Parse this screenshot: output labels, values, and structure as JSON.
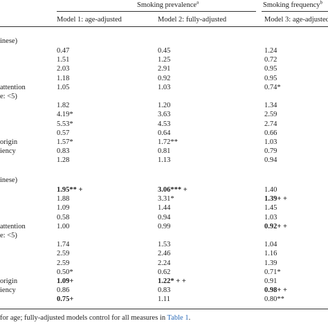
{
  "header": {
    "group_a": "Smoking prevalence",
    "group_a_note": "a",
    "group_b": "Smoking frequency",
    "group_b_note": "b",
    "model1": "Model 1: age-adjusted",
    "model2": "Model 2: fully-adjusted",
    "model3": "Model 3: age-adjusted"
  },
  "section1_label": "inese)",
  "section2_label": "inese)",
  "rows1": [
    {
      "label": "",
      "m1": "0.47",
      "m2": "0.45",
      "m3": "1.24"
    },
    {
      "label": "",
      "m1": "1.51",
      "m2": "1.25",
      "m3": "0.72"
    },
    {
      "label": "",
      "m1": "2.03",
      "m2": "2.91",
      "m3": "0.95"
    },
    {
      "label": "",
      "m1": "1.18",
      "m2": "0.92",
      "m3": "0.95"
    },
    {
      "label": "attention",
      "m1": "1.05",
      "m2": "1.03",
      "m3": "0.74*"
    },
    {
      "label": "e: <5)",
      "m1": "",
      "m2": "",
      "m3": ""
    },
    {
      "label": "",
      "m1": "1.82",
      "m2": "1.20",
      "m3": "1.34"
    },
    {
      "label": "",
      "m1": "4.19*",
      "m2": "3.63",
      "m3": "2.59"
    },
    {
      "label": "",
      "m1": "5.53*",
      "m2": "4.53",
      "m3": "2.74"
    },
    {
      "label": "",
      "m1": "0.57",
      "m2": "0.64",
      "m3": "0.66"
    },
    {
      "label": "origin",
      "m1": "1.57*",
      "m2": "1.72**",
      "m3": "1.03"
    },
    {
      "label": "iency",
      "m1": "0.83",
      "m2": "0.81",
      "m3": "0.79"
    },
    {
      "label": "",
      "m1": "1.28",
      "m2": "1.13",
      "m3": "0.94"
    }
  ],
  "rows2": [
    {
      "label": "",
      "m1": "1.95** +",
      "m1_bold": true,
      "m2": "3.06*** +",
      "m2_bold": true,
      "m3": "1.40",
      "m3_bold": false
    },
    {
      "label": "",
      "m1": "1.88",
      "m1_bold": false,
      "m2": "3.31*",
      "m2_bold": false,
      "m3": "1.39+ +",
      "m3_bold": true
    },
    {
      "label": "",
      "m1": "1.09",
      "m1_bold": false,
      "m2": "1.44",
      "m2_bold": false,
      "m3": "1.45",
      "m3_bold": false
    },
    {
      "label": "",
      "m1": "0.58",
      "m1_bold": false,
      "m2": "0.94",
      "m2_bold": false,
      "m3": "1.03",
      "m3_bold": false
    },
    {
      "label": "attention",
      "m1": "1.00",
      "m1_bold": false,
      "m2": "0.99",
      "m2_bold": false,
      "m3": "0.92+ +",
      "m3_bold": true
    },
    {
      "label": "e: <5)",
      "m1": "",
      "m1_bold": false,
      "m2": "",
      "m2_bold": false,
      "m3": "",
      "m3_bold": false
    },
    {
      "label": "",
      "m1": "1.74",
      "m1_bold": false,
      "m2": "1.53",
      "m2_bold": false,
      "m3": "1.04",
      "m3_bold": false
    },
    {
      "label": "",
      "m1": "2.59",
      "m1_bold": false,
      "m2": "2.46",
      "m2_bold": false,
      "m3": "1.16",
      "m3_bold": false
    },
    {
      "label": "",
      "m1": "2.59",
      "m1_bold": false,
      "m2": "2.24",
      "m2_bold": false,
      "m3": "1.39",
      "m3_bold": false
    },
    {
      "label": "",
      "m1": "0.50*",
      "m1_bold": false,
      "m2": "0.62",
      "m2_bold": false,
      "m3": "0.71*",
      "m3_bold": false
    },
    {
      "label": "origin",
      "m1": "1.09+",
      "m1_bold": true,
      "m2": "1.22* + +",
      "m2_bold": true,
      "m3": "0.91",
      "m3_bold": false
    },
    {
      "label": "iency",
      "m1": "0.86",
      "m1_bold": false,
      "m2": "0.83",
      "m2_bold": false,
      "m3": "0.98+ +",
      "m3_bold": true
    },
    {
      "label": "",
      "m1": "0.75+",
      "m1_bold": true,
      "m2": "1.11",
      "m2_bold": false,
      "m3": "0.80**",
      "m3_bold": false
    }
  ],
  "footnote": {
    "text": "for age; fully-adjusted models control for all measures in ",
    "link": "Table 1",
    "end": "."
  }
}
